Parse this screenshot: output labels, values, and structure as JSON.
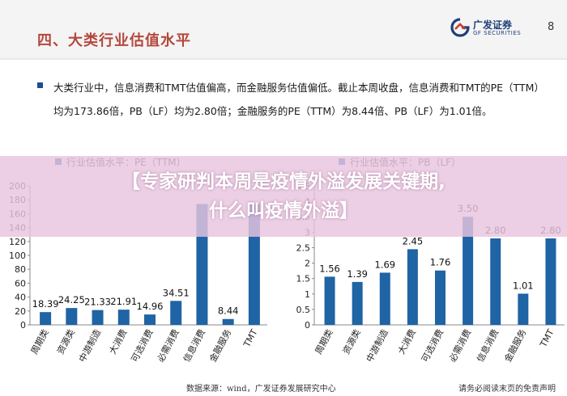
{
  "header": {
    "section_title": "四、大类行业估值水平",
    "logo_cn": "广发证券",
    "logo_en": "GF SECURITIES",
    "page_number": "8"
  },
  "body": {
    "paragraph": "大类行业中，信息消费和TMT估值偏高，而金融服务估值偏低。截止本周收盘，信息消费和TMT的PE（TTM）均为173.86倍，PB（LF）均为2.80倍；金融服务的PE（TTM）为8.44倍、PB（LF）为1.01倍。"
  },
  "overlay": {
    "line1": "【专家研判本周是疫情外溢发展关键期,",
    "line2": "什么叫疫情外溢】"
  },
  "footer": {
    "source": "数据来源：wind，广发证券发展研究中心",
    "disclaimer": "请务必阅读末页的免责声明"
  },
  "colors": {
    "bar_fill": "#1f64a4",
    "section_title": "#b4473c",
    "overlay": "#e8c4de"
  },
  "chart_data": [
    {
      "type": "bar",
      "legend": "行业估值水平：PE（TTM）",
      "categories": [
        "周期类",
        "资源类",
        "中游制造",
        "大消费",
        "可选消费",
        "必需消费",
        "信息消费",
        "金融服务",
        "TMT"
      ],
      "values": [
        18.39,
        24.25,
        21.33,
        21.91,
        14.96,
        34.51,
        173.86,
        8.44,
        173.86
      ],
      "value_labels": [
        "18.39",
        "24.25",
        "21.33",
        "21.91",
        "14.96",
        "34.51",
        "",
        "8.44",
        ""
      ],
      "yticks": [
        "0",
        "20",
        "40",
        "60",
        "80",
        "100",
        "120",
        "140",
        "160",
        "180",
        "200"
      ],
      "ylim": [
        0,
        200
      ],
      "grid": false,
      "legend_position": "top-left"
    },
    {
      "type": "bar",
      "legend": "行业估值水平：PB（LF）",
      "categories": [
        "周期类",
        "资源类",
        "中游制造",
        "大消费",
        "可选消费",
        "必需消费",
        "信息消费",
        "金融服务",
        "TMT"
      ],
      "values": [
        1.56,
        1.39,
        1.69,
        2.45,
        1.76,
        3.5,
        2.8,
        1.01,
        2.8
      ],
      "value_labels": [
        "1.56",
        "1.39",
        "1.69",
        "2.45",
        "1.76",
        "3.50",
        "2.80",
        "1.01",
        "2.80"
      ],
      "yticks": [
        "0",
        "0.5",
        "1",
        "1.5",
        "2",
        "2.5",
        "3",
        "3.5",
        "4",
        "4.5"
      ],
      "ylim": [
        0,
        4.5
      ],
      "grid": false,
      "legend_position": "top-left"
    }
  ]
}
